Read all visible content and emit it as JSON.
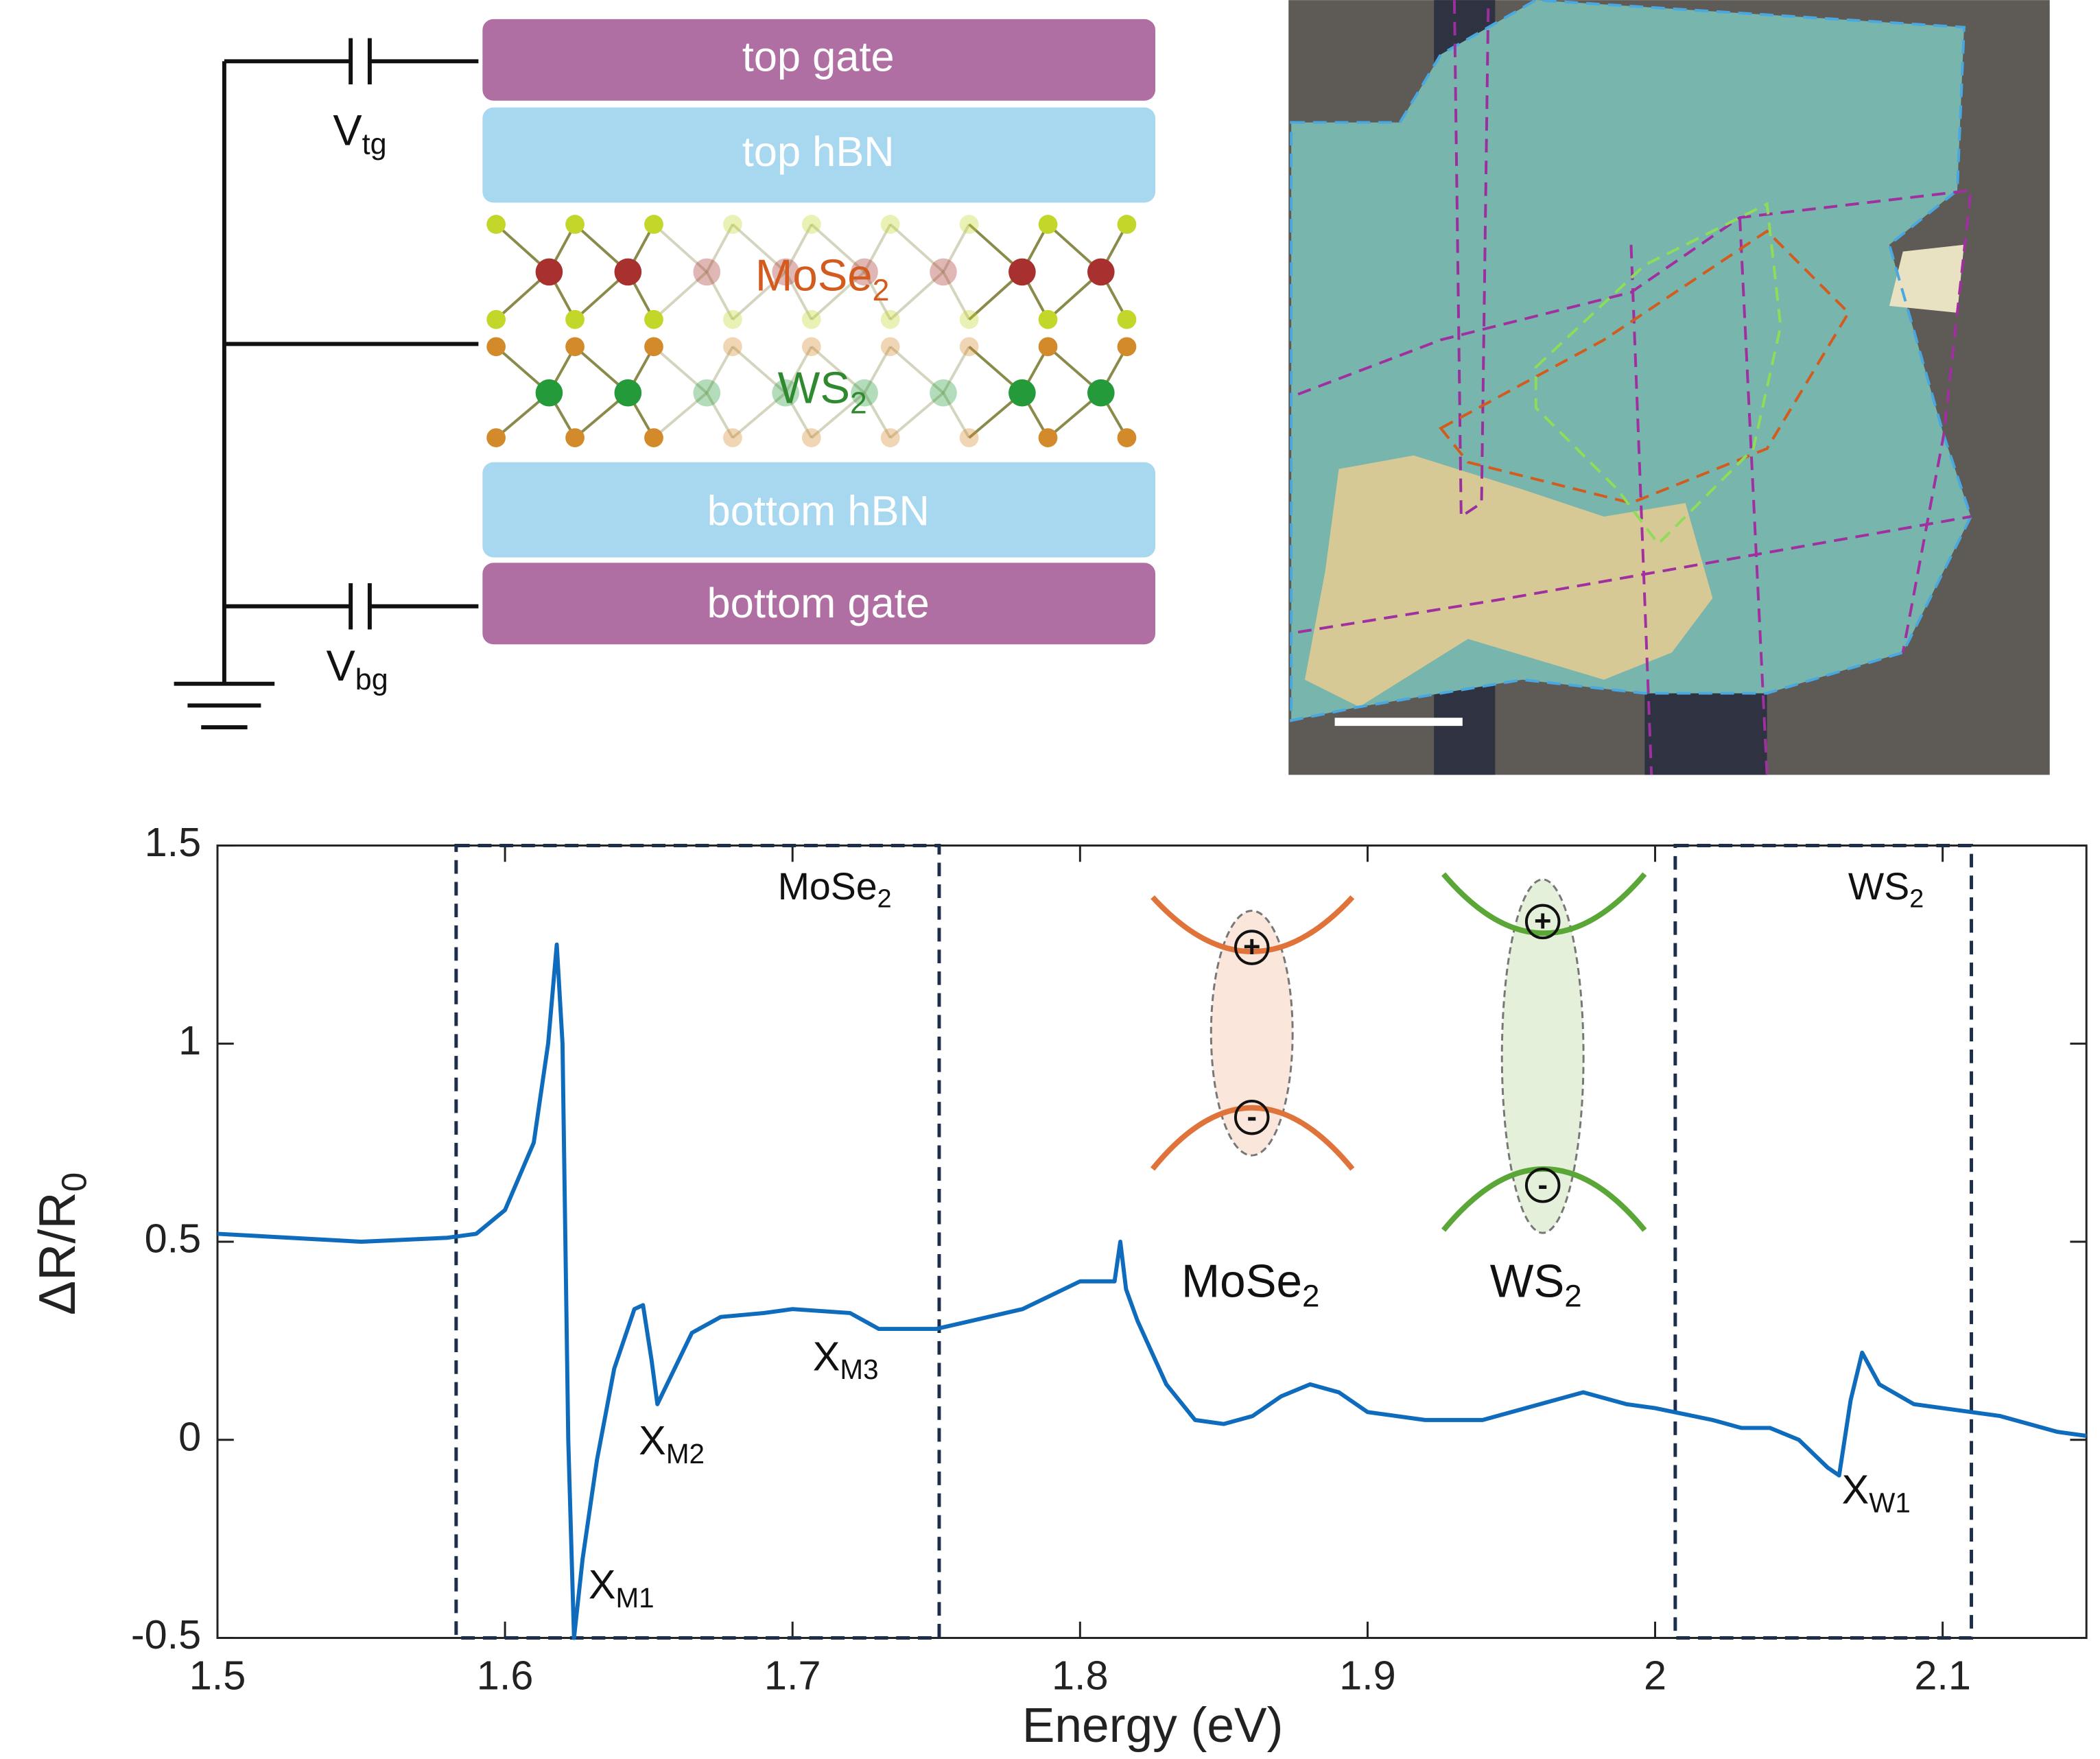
{
  "schematic": {
    "layers": [
      "top gate",
      "top hBN",
      "bottom hBN",
      "bottom gate"
    ],
    "materials": [
      {
        "text": "MoSe",
        "sub": "2"
      },
      {
        "text": "WS",
        "sub": "2"
      }
    ],
    "voltages": [
      {
        "text": "V",
        "sub": "tg"
      },
      {
        "text": "V",
        "sub": "bg"
      }
    ]
  },
  "chart_data": {
    "type": "line",
    "x_label": "Energy (eV)",
    "y_label": {
      "text": "ΔR/R",
      "sub": "0"
    },
    "color": "#0f6cbd",
    "x": [
      1.5,
      1.55,
      1.58,
      1.59,
      1.6,
      1.61,
      1.615,
      1.618,
      1.62,
      1.622,
      1.624,
      1.627,
      1.632,
      1.638,
      1.645,
      1.648,
      1.651,
      1.653,
      1.657,
      1.665,
      1.675,
      1.69,
      1.7,
      1.72,
      1.73,
      1.75,
      1.78,
      1.8,
      1.812,
      1.814,
      1.816,
      1.82,
      1.83,
      1.84,
      1.85,
      1.86,
      1.87,
      1.88,
      1.89,
      1.9,
      1.92,
      1.94,
      1.96,
      1.975,
      1.99,
      2.0,
      2.02,
      2.03,
      2.04,
      2.05,
      2.06,
      2.064,
      2.068,
      2.072,
      2.078,
      2.09,
      2.1,
      2.12,
      2.14,
      2.15
    ],
    "values": [
      0.52,
      0.5,
      0.51,
      0.52,
      0.58,
      0.75,
      1.0,
      1.25,
      1.0,
      0.0,
      -0.5,
      -0.3,
      -0.05,
      0.18,
      0.33,
      0.34,
      0.2,
      0.09,
      0.15,
      0.27,
      0.31,
      0.32,
      0.33,
      0.32,
      0.28,
      0.28,
      0.33,
      0.4,
      0.4,
      0.5,
      0.38,
      0.3,
      0.14,
      0.05,
      0.04,
      0.06,
      0.11,
      0.14,
      0.12,
      0.07,
      0.05,
      0.05,
      0.09,
      0.12,
      0.09,
      0.08,
      0.05,
      0.03,
      0.03,
      0.0,
      -0.07,
      -0.09,
      0.1,
      0.22,
      0.14,
      0.09,
      0.08,
      0.06,
      0.02,
      0.01
    ],
    "xlim": [
      1.5,
      2.15
    ],
    "ylim": [
      -0.5,
      1.5
    ],
    "xticks": [
      1.5,
      1.6,
      1.7,
      1.8,
      1.9,
      2,
      2.1
    ],
    "yticks": [
      -0.5,
      0,
      0.5,
      1,
      1.5
    ],
    "regions": [
      {
        "text": "MoSe",
        "sub": "2",
        "xlim": [
          1.583,
          1.751
        ]
      },
      {
        "text": "WS",
        "sub": "2",
        "xlim": [
          2.007,
          2.11
        ]
      }
    ],
    "annotations": [
      {
        "text": "X",
        "sub": "M1"
      },
      {
        "text": "X",
        "sub": "M2"
      },
      {
        "text": "X",
        "sub": "M3"
      },
      {
        "text": "X",
        "sub": "W1"
      }
    ]
  },
  "inset": {
    "materials": [
      {
        "text": "MoSe",
        "sub": "2"
      },
      {
        "text": "WS",
        "sub": "2"
      }
    ],
    "charges": [
      "+",
      "-"
    ]
  }
}
